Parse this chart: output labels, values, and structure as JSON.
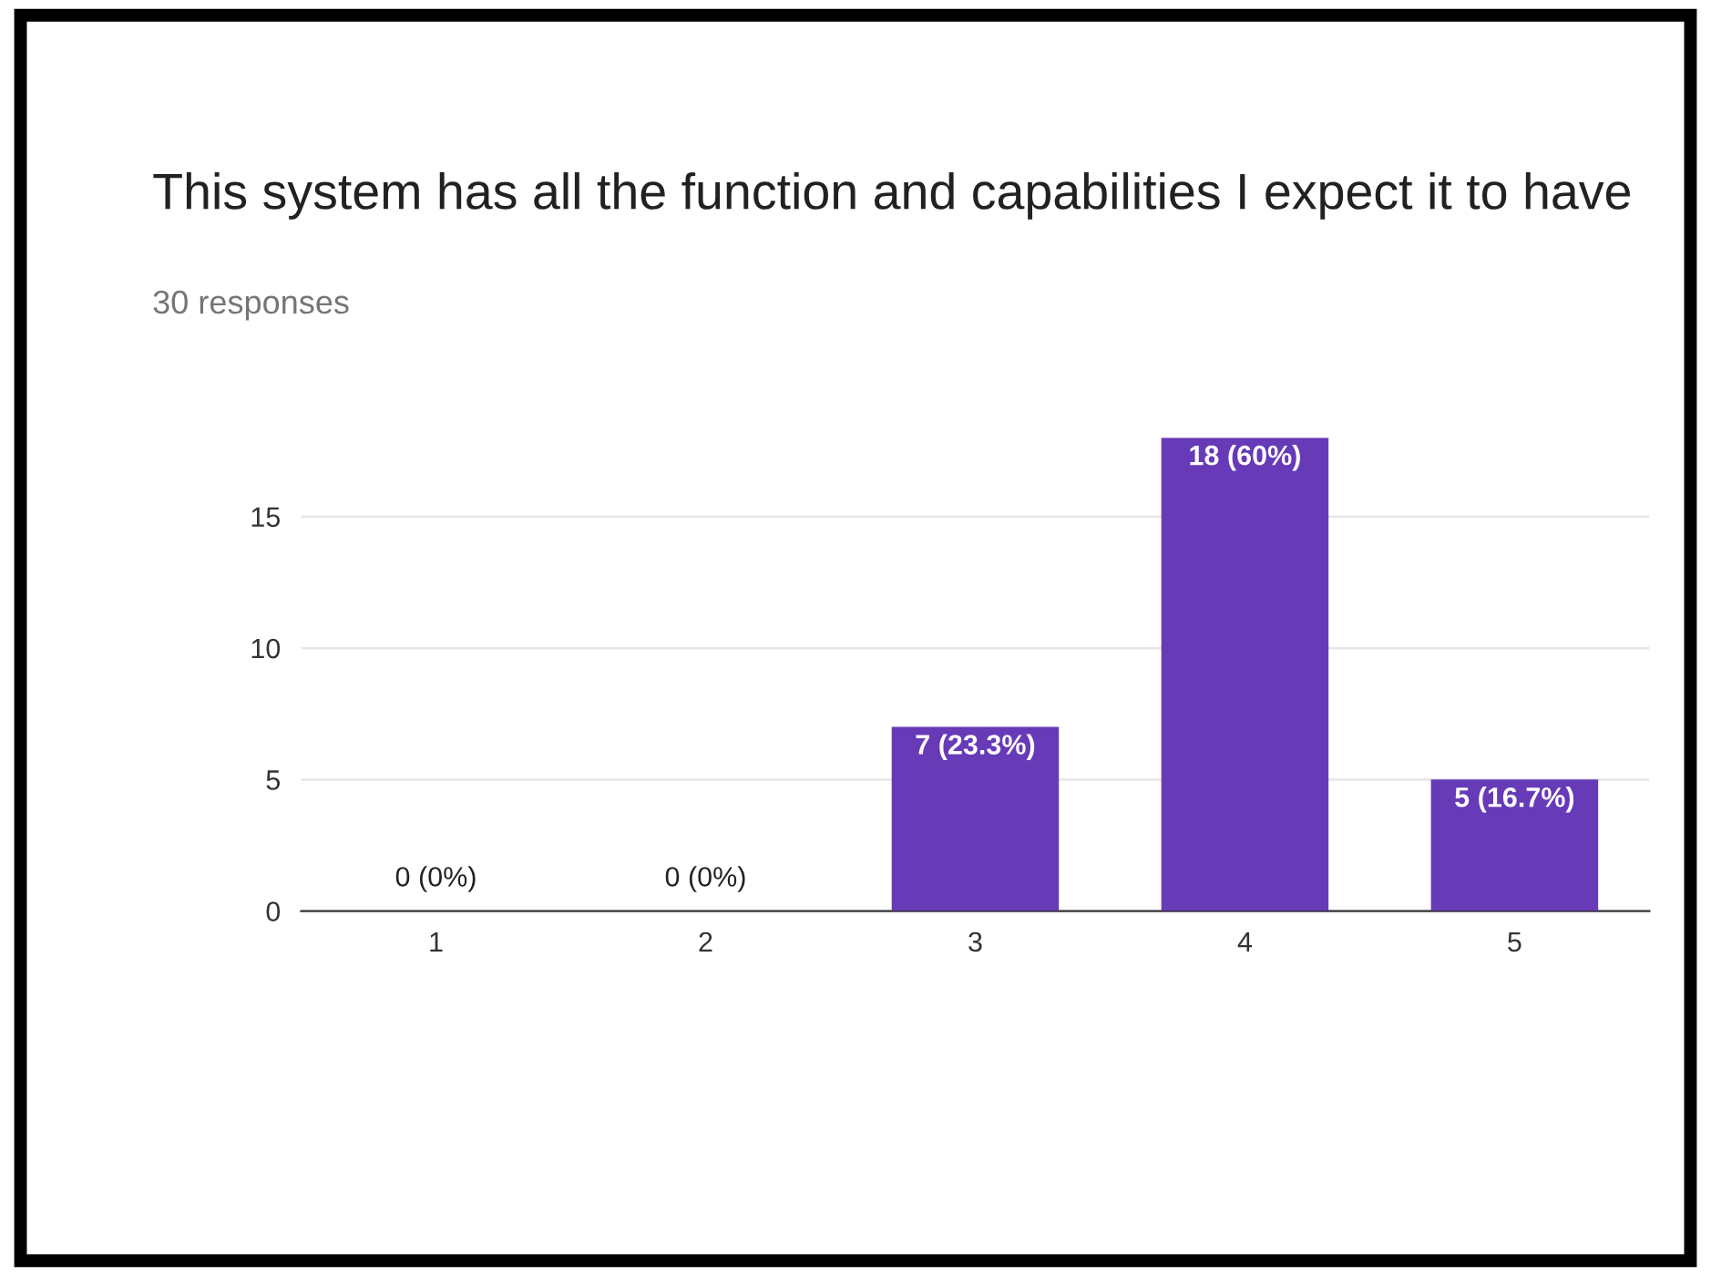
{
  "chart_data": {
    "type": "bar",
    "title": "This system has all the function and capabilities I expect it to have",
    "subtitle": "30 responses",
    "categories": [
      "1",
      "2",
      "3",
      "4",
      "5"
    ],
    "values": [
      0,
      0,
      7,
      18,
      5
    ],
    "value_labels": [
      "0 (0%)",
      "0 (0%)",
      "7 (23.3%)",
      "18 (60%)",
      "5 (16.7%)"
    ],
    "color": "#673ab7",
    "ylim": [
      0,
      18
    ],
    "yticks": [
      0,
      5,
      10,
      15
    ],
    "grid": "y"
  }
}
